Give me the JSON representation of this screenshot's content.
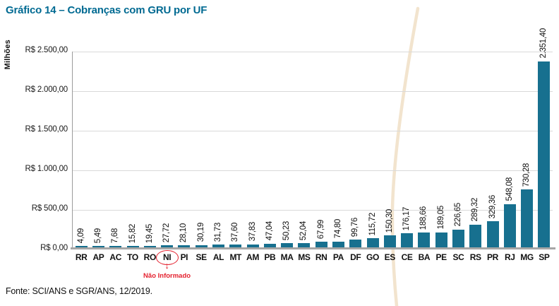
{
  "title": "Gráfico 14 – Cobranças com GRU por UF",
  "source": "Fonte: SCI/ANS e SGR/ANS, 12/2019.",
  "annotation": {
    "target": "NI",
    "arrow": "↓",
    "text": "Não Informado"
  },
  "colors": {
    "bar": "#17708f",
    "title": "#006a92",
    "annotation": "#e4212e",
    "gridline": "#d9d9d9",
    "axis": "#a6a6a6",
    "yaxis": "#9b9b9b",
    "curve": "#f2e4ce"
  },
  "chart_data": {
    "type": "bar",
    "title": "Gráfico 14 – Cobranças com GRU por UF",
    "xlabel": "",
    "ylabel": "Milhões",
    "ylim": [
      0,
      2500
    ],
    "grid": true,
    "legend": false,
    "categories": [
      "RR",
      "AP",
      "AC",
      "TO",
      "RO",
      "NI",
      "PI",
      "SE",
      "AL",
      "MT",
      "AM",
      "PB",
      "MA",
      "MS",
      "RN",
      "PA",
      "DF",
      "GO",
      "ES",
      "CE",
      "BA",
      "PE",
      "SC",
      "RS",
      "PR",
      "RJ",
      "MG",
      "SP"
    ],
    "values": [
      4.09,
      5.49,
      7.68,
      15.82,
      19.45,
      27.72,
      28.1,
      30.19,
      31.73,
      37.6,
      37.83,
      47.04,
      50.23,
      52.04,
      67.99,
      74.8,
      99.76,
      115.72,
      150.3,
      176.17,
      188.66,
      189.05,
      226.65,
      289.32,
      329.36,
      548.08,
      730.28,
      2351.4
    ],
    "value_labels": [
      "4,09",
      "5,49",
      "7,68",
      "15,82",
      "19,45",
      "27,72",
      "28,10",
      "30,19",
      "31,73",
      "37,60",
      "37,83",
      "47,04",
      "50,23",
      "52,04",
      "67,99",
      "74,80",
      "99,76",
      "115,72",
      "150,30",
      "176,17",
      "188,66",
      "189,05",
      "226,65",
      "289,32",
      "329,36",
      "548,08",
      "730,28",
      "2.351,40"
    ],
    "y_tick_labels": [
      "R$ 2.500,00",
      "R$ 2.000,00",
      "R$ 1.500,00",
      "R$ 1.000,00",
      "R$ 500,00",
      "R$ 0,00"
    ],
    "y_tick_values": [
      2500,
      2000,
      1500,
      1000,
      500,
      0
    ]
  }
}
